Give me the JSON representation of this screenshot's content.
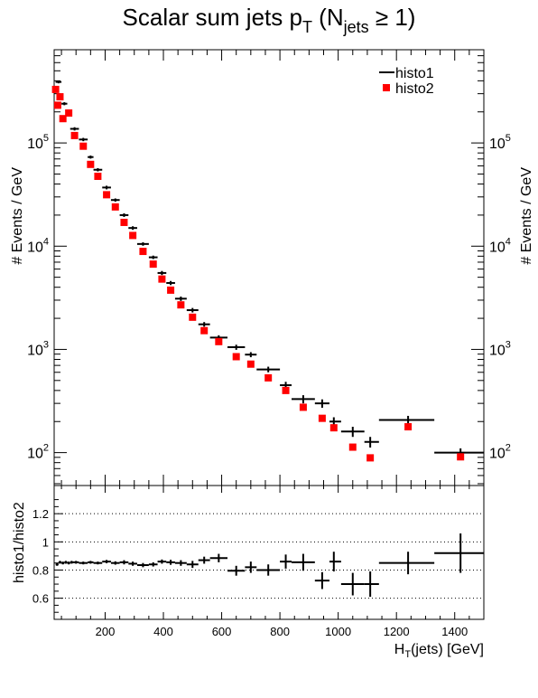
{
  "chart_data": {
    "type": "scatter",
    "title": {
      "main": "Scalar sum jets p",
      "main_sub": "T",
      "paren_open": " (N",
      "paren_sub": "jets",
      "cond": " ≥ 1)"
    },
    "xlabel": {
      "main": "H",
      "sub": "T",
      "rest": "(jets) [GeV]"
    },
    "top_panel": {
      "ylabel": "# Events / GeV",
      "yscale": "log",
      "ylim": [
        48,
        800000
      ],
      "y_tick_labels": [
        {
          "value": 100,
          "base": "10",
          "exp": "2"
        },
        {
          "value": 1000,
          "base": "10",
          "exp": "3"
        },
        {
          "value": 10000,
          "base": "10",
          "exp": "4"
        },
        {
          "value": 100000,
          "base": "10",
          "exp": "5"
        }
      ],
      "legend": {
        "position": "top-right",
        "items": [
          "histo1",
          "histo2"
        ]
      },
      "series": [
        {
          "name": "histo1",
          "style": "errorbar-cross",
          "color": "#000000",
          "points": [
            {
              "x": 40,
              "xlo": 30,
              "xhi": 50,
              "y": 390000,
              "err": 12000
            },
            {
              "x": 60,
              "xlo": 50,
              "xhi": 70,
              "y": 240000,
              "err": 8000
            },
            {
              "x": 75,
              "xlo": 70,
              "xhi": 80,
              "y": 199000,
              "err": 6000
            },
            {
              "x": 95,
              "xlo": 80,
              "xhi": 110,
              "y": 137000,
              "err": 5000
            },
            {
              "x": 125,
              "xlo": 110,
              "xhi": 140,
              "y": 108000,
              "err": 4000
            },
            {
              "x": 150,
              "xlo": 140,
              "xhi": 160,
              "y": 73000,
              "err": 2500
            },
            {
              "x": 175,
              "xlo": 160,
              "xhi": 190,
              "y": 55000,
              "err": 2000
            },
            {
              "x": 205,
              "xlo": 190,
              "xhi": 220,
              "y": 37000,
              "err": 1500
            },
            {
              "x": 235,
              "xlo": 220,
              "xhi": 250,
              "y": 28000,
              "err": 1000
            },
            {
              "x": 265,
              "xlo": 250,
              "xhi": 280,
              "y": 20000,
              "err": 800
            },
            {
              "x": 295,
              "xlo": 280,
              "xhi": 310,
              "y": 15000,
              "err": 600
            },
            {
              "x": 330,
              "xlo": 310,
              "xhi": 350,
              "y": 10500,
              "err": 400
            },
            {
              "x": 365,
              "xlo": 350,
              "xhi": 380,
              "y": 7800,
              "err": 300
            },
            {
              "x": 395,
              "xlo": 380,
              "xhi": 410,
              "y": 5500,
              "err": 250
            },
            {
              "x": 425,
              "xlo": 410,
              "xhi": 440,
              "y": 4400,
              "err": 200
            },
            {
              "x": 460,
              "xlo": 440,
              "xhi": 480,
              "y": 3100,
              "err": 150
            },
            {
              "x": 500,
              "xlo": 480,
              "xhi": 520,
              "y": 2400,
              "err": 120
            },
            {
              "x": 540,
              "xlo": 520,
              "xhi": 560,
              "y": 1750,
              "err": 90
            },
            {
              "x": 590,
              "xlo": 560,
              "xhi": 620,
              "y": 1300,
              "err": 70
            },
            {
              "x": 650,
              "xlo": 620,
              "xhi": 680,
              "y": 1050,
              "err": 60
            },
            {
              "x": 700,
              "xlo": 680,
              "xhi": 720,
              "y": 890,
              "err": 50
            },
            {
              "x": 760,
              "xlo": 720,
              "xhi": 800,
              "y": 640,
              "err": 40
            },
            {
              "x": 820,
              "xlo": 800,
              "xhi": 840,
              "y": 450,
              "err": 35
            },
            {
              "x": 880,
              "xlo": 840,
              "xhi": 920,
              "y": 330,
              "err": 30
            },
            {
              "x": 945,
              "xlo": 920,
              "xhi": 970,
              "y": 300,
              "err": 28
            },
            {
              "x": 985,
              "xlo": 970,
              "xhi": 1010,
              "y": 200,
              "err": 20
            },
            {
              "x": 1050,
              "xlo": 1010,
              "xhi": 1090,
              "y": 160,
              "err": 18
            },
            {
              "x": 1110,
              "xlo": 1090,
              "xhi": 1140,
              "y": 127,
              "err": 15
            },
            {
              "x": 1240,
              "xlo": 1140,
              "xhi": 1330,
              "y": 207,
              "err": 20
            },
            {
              "x": 1420,
              "xlo": 1330,
              "xhi": 1500,
              "y": 100,
              "err": 10
            }
          ]
        },
        {
          "name": "histo2",
          "style": "square-marker",
          "color": "#ff0000",
          "points": [
            {
              "x": 30,
              "y": 330000
            },
            {
              "x": 37,
              "y": 232000
            },
            {
              "x": 45,
              "y": 280000
            },
            {
              "x": 55,
              "y": 172000
            },
            {
              "x": 75,
              "y": 195000
            },
            {
              "x": 95,
              "y": 118000
            },
            {
              "x": 125,
              "y": 93000
            },
            {
              "x": 150,
              "y": 62000
            },
            {
              "x": 175,
              "y": 47500
            },
            {
              "x": 205,
              "y": 31500
            },
            {
              "x": 235,
              "y": 24000
            },
            {
              "x": 265,
              "y": 17000
            },
            {
              "x": 295,
              "y": 12700
            },
            {
              "x": 330,
              "y": 8900
            },
            {
              "x": 365,
              "y": 6700
            },
            {
              "x": 395,
              "y": 4800
            },
            {
              "x": 425,
              "y": 3750
            },
            {
              "x": 460,
              "y": 2700
            },
            {
              "x": 500,
              "y": 2050
            },
            {
              "x": 540,
              "y": 1520
            },
            {
              "x": 590,
              "y": 1190
            },
            {
              "x": 650,
              "y": 850
            },
            {
              "x": 700,
              "y": 720
            },
            {
              "x": 760,
              "y": 530
            },
            {
              "x": 820,
              "y": 400
            },
            {
              "x": 880,
              "y": 275
            },
            {
              "x": 945,
              "y": 215
            },
            {
              "x": 985,
              "y": 174
            },
            {
              "x": 1050,
              "y": 113
            },
            {
              "x": 1110,
              "y": 89
            },
            {
              "x": 1240,
              "y": 178
            },
            {
              "x": 1420,
              "y": 91
            }
          ]
        }
      ]
    },
    "ratio_panel": {
      "ylabel": "histo1/histo2",
      "ylim": [
        0.45,
        1.4
      ],
      "y_ticks": [
        0.6,
        0.8,
        1.0,
        1.2
      ],
      "y_tick_labels": [
        "0.6",
        "0.8",
        "1",
        "1.2"
      ],
      "grid_y": [
        0.6,
        0.8,
        1.0,
        1.2
      ],
      "points": [
        {
          "x": 35,
          "xlo": 30,
          "xhi": 40,
          "y": 0.84,
          "err": 0.01
        },
        {
          "x": 45,
          "xlo": 40,
          "xhi": 50,
          "y": 0.855,
          "err": 0.01
        },
        {
          "x": 55,
          "xlo": 50,
          "xhi": 60,
          "y": 0.85,
          "err": 0.01
        },
        {
          "x": 65,
          "xlo": 60,
          "xhi": 70,
          "y": 0.855,
          "err": 0.01
        },
        {
          "x": 75,
          "xlo": 70,
          "xhi": 80,
          "y": 0.85,
          "err": 0.01
        },
        {
          "x": 85,
          "xlo": 80,
          "xhi": 90,
          "y": 0.855,
          "err": 0.01
        },
        {
          "x": 100,
          "xlo": 90,
          "xhi": 110,
          "y": 0.855,
          "err": 0.01
        },
        {
          "x": 125,
          "xlo": 110,
          "xhi": 140,
          "y": 0.85,
          "err": 0.01
        },
        {
          "x": 150,
          "xlo": 140,
          "xhi": 160,
          "y": 0.855,
          "err": 0.01
        },
        {
          "x": 175,
          "xlo": 160,
          "xhi": 190,
          "y": 0.85,
          "err": 0.01
        },
        {
          "x": 205,
          "xlo": 190,
          "xhi": 220,
          "y": 0.86,
          "err": 0.012
        },
        {
          "x": 235,
          "xlo": 220,
          "xhi": 250,
          "y": 0.85,
          "err": 0.012
        },
        {
          "x": 265,
          "xlo": 250,
          "xhi": 280,
          "y": 0.855,
          "err": 0.015
        },
        {
          "x": 295,
          "xlo": 280,
          "xhi": 310,
          "y": 0.845,
          "err": 0.015
        },
        {
          "x": 330,
          "xlo": 310,
          "xhi": 350,
          "y": 0.835,
          "err": 0.015
        },
        {
          "x": 365,
          "xlo": 350,
          "xhi": 380,
          "y": 0.84,
          "err": 0.015
        },
        {
          "x": 395,
          "xlo": 380,
          "xhi": 410,
          "y": 0.86,
          "err": 0.015
        },
        {
          "x": 425,
          "xlo": 410,
          "xhi": 440,
          "y": 0.855,
          "err": 0.018
        },
        {
          "x": 460,
          "xlo": 440,
          "xhi": 480,
          "y": 0.85,
          "err": 0.02
        },
        {
          "x": 500,
          "xlo": 480,
          "xhi": 520,
          "y": 0.84,
          "err": 0.025
        },
        {
          "x": 540,
          "xlo": 520,
          "xhi": 560,
          "y": 0.87,
          "err": 0.025
        },
        {
          "x": 590,
          "xlo": 560,
          "xhi": 620,
          "y": 0.885,
          "err": 0.03
        },
        {
          "x": 650,
          "xlo": 620,
          "xhi": 680,
          "y": 0.795,
          "err": 0.035
        },
        {
          "x": 700,
          "xlo": 680,
          "xhi": 720,
          "y": 0.82,
          "err": 0.04
        },
        {
          "x": 760,
          "xlo": 720,
          "xhi": 800,
          "y": 0.8,
          "err": 0.04
        },
        {
          "x": 820,
          "xlo": 800,
          "xhi": 840,
          "y": 0.86,
          "err": 0.05
        },
        {
          "x": 880,
          "xlo": 840,
          "xhi": 920,
          "y": 0.855,
          "err": 0.06
        },
        {
          "x": 945,
          "xlo": 920,
          "xhi": 970,
          "y": 0.725,
          "err": 0.06
        },
        {
          "x": 985,
          "xlo": 970,
          "xhi": 1010,
          "y": 0.86,
          "err": 0.07
        },
        {
          "x": 1050,
          "xlo": 1010,
          "xhi": 1090,
          "y": 0.7,
          "err": 0.08
        },
        {
          "x": 1110,
          "xlo": 1090,
          "xhi": 1140,
          "y": 0.7,
          "err": 0.09
        },
        {
          "x": 1240,
          "xlo": 1140,
          "xhi": 1330,
          "y": 0.85,
          "err": 0.08
        },
        {
          "x": 1420,
          "xlo": 1330,
          "xhi": 1500,
          "y": 0.92,
          "err": 0.14
        }
      ]
    },
    "x_axis": {
      "xlim": [
        25,
        1500
      ],
      "ticks": [
        200,
        400,
        600,
        800,
        1000,
        1200,
        1400
      ],
      "tick_labels": [
        "200",
        "400",
        "600",
        "800",
        "1000",
        "1200",
        "1400"
      ]
    }
  }
}
